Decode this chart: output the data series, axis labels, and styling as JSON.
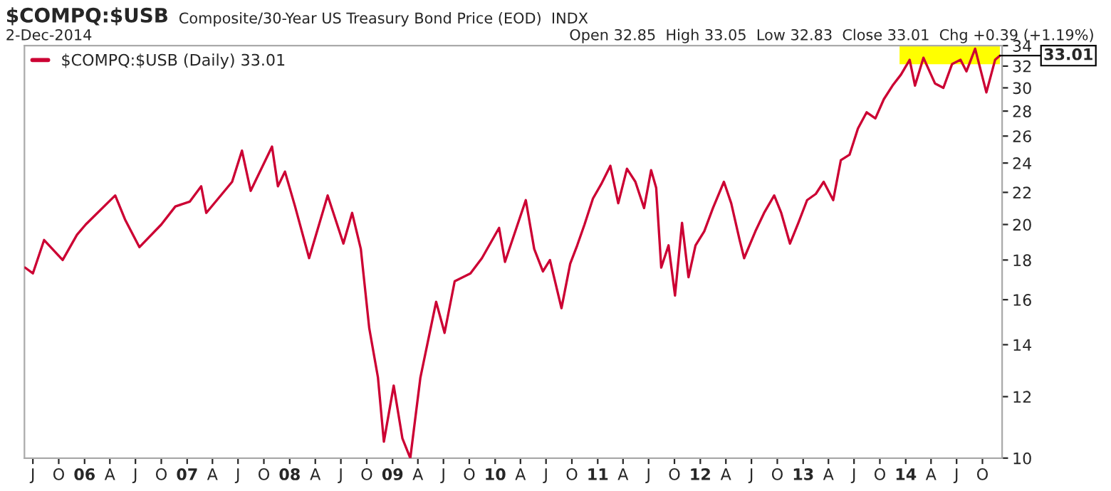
{
  "chart_data": {
    "type": "line",
    "title": "$COMPQ:$USB",
    "subtitle": "Composite/30-Year US Treasury Bond Price (EOD)  INDX",
    "annotations": [
      "2-Dec-2014",
      "Open 32.85  High 33.05  Low 32.83  Close 33.01  Chg +0.39 (+1.19%)",
      {
        "text": "33.01",
        "x": "2014-12-02",
        "y": 33.01
      }
    ],
    "x": [
      "2005-06-03",
      "2005-07-01",
      "2005-08-10",
      "2005-10-15",
      "2005-12-05",
      "2006-01-05",
      "2006-04-20",
      "2006-05-25",
      "2006-07-15",
      "2006-10-01",
      "2006-11-20",
      "2007-01-10",
      "2007-02-20",
      "2007-03-10",
      "2007-06-10",
      "2007-07-15",
      "2007-08-15",
      "2007-10-30",
      "2007-11-20",
      "2007-12-15",
      "2008-01-20",
      "2008-03-10",
      "2008-05-15",
      "2008-07-10",
      "2008-08-10",
      "2008-09-10",
      "2008-10-10",
      "2008-11-10",
      "2008-12-01",
      "2009-01-05",
      "2009-02-05",
      "2009-03-05",
      "2009-04-10",
      "2009-06-05",
      "2009-07-05",
      "2009-08-10",
      "2009-10-05",
      "2009-11-15",
      "2010-01-15",
      "2010-02-05",
      "2010-04-20",
      "2010-05-20",
      "2010-06-20",
      "2010-07-15",
      "2010-08-25",
      "2010-09-25",
      "2010-10-20",
      "2010-11-15",
      "2010-12-15",
      "2011-01-15",
      "2011-02-15",
      "2011-03-15",
      "2011-04-15",
      "2011-05-15",
      "2011-06-15",
      "2011-07-10",
      "2011-07-28",
      "2011-08-15",
      "2011-09-10",
      "2011-10-03",
      "2011-10-28",
      "2011-11-20",
      "2011-12-15",
      "2012-01-15",
      "2012-02-15",
      "2012-03-25",
      "2012-04-20",
      "2012-05-20",
      "2012-06-05",
      "2012-07-15",
      "2012-08-15",
      "2012-09-20",
      "2012-10-15",
      "2012-11-15",
      "2012-12-15",
      "2013-01-15",
      "2013-02-15",
      "2013-03-15",
      "2013-04-18",
      "2013-05-15",
      "2013-06-15",
      "2013-07-15",
      "2013-08-15",
      "2013-09-15",
      "2013-10-15",
      "2013-11-15",
      "2013-12-15",
      "2014-01-15",
      "2014-02-03",
      "2014-03-05",
      "2014-04-15",
      "2014-05-15",
      "2014-06-15",
      "2014-07-15",
      "2014-08-05",
      "2014-09-05",
      "2014-10-15",
      "2014-11-15",
      "2014-12-02"
    ],
    "series": [
      {
        "name": "$COMPQ:$USB (Daily) 33.01",
        "color": "#cc0033",
        "values": [
          17.6,
          17.3,
          19.1,
          18.0,
          19.4,
          20.0,
          21.8,
          20.3,
          18.7,
          20.0,
          21.1,
          21.4,
          22.4,
          20.7,
          22.7,
          24.9,
          22.1,
          25.2,
          22.4,
          23.4,
          21.1,
          18.1,
          21.8,
          18.9,
          20.7,
          18.6,
          14.7,
          12.7,
          10.5,
          12.4,
          10.6,
          10.0,
          12.7,
          15.9,
          14.5,
          16.9,
          17.3,
          18.1,
          19.8,
          17.9,
          21.5,
          18.6,
          17.4,
          18.0,
          15.6,
          17.8,
          18.8,
          20.0,
          21.6,
          22.6,
          23.8,
          21.3,
          23.6,
          22.7,
          21.0,
          23.5,
          22.3,
          17.6,
          18.8,
          16.2,
          20.1,
          17.1,
          18.8,
          19.6,
          21.0,
          22.7,
          21.3,
          19.1,
          18.1,
          19.6,
          20.7,
          21.8,
          20.7,
          18.9,
          20.1,
          21.5,
          21.9,
          22.7,
          21.5,
          24.2,
          24.6,
          26.6,
          27.9,
          27.4,
          29.0,
          30.2,
          31.2,
          32.6,
          30.2,
          32.8,
          30.4,
          30.0,
          32.2,
          32.6,
          31.5,
          33.7,
          29.6,
          32.6,
          33.01
        ]
      }
    ],
    "log": "y",
    "ylim": [
      10,
      34
    ],
    "yticks": [
      10,
      12,
      14,
      16,
      18,
      20,
      22,
      24,
      26,
      28,
      30,
      32,
      34
    ],
    "xlim": [
      "2005-06-01",
      "2014-12-10"
    ],
    "xticks": [
      {
        "value": "2005-07-01",
        "label": "J"
      },
      {
        "value": "2005-10-01",
        "label": "O"
      },
      {
        "value": "2006-01-01",
        "label": "06"
      },
      {
        "value": "2006-04-01",
        "label": "A"
      },
      {
        "value": "2006-07-01",
        "label": "J"
      },
      {
        "value": "2006-10-01",
        "label": "O"
      },
      {
        "value": "2007-01-01",
        "label": "07"
      },
      {
        "value": "2007-04-01",
        "label": "A"
      },
      {
        "value": "2007-07-01",
        "label": "J"
      },
      {
        "value": "2007-10-01",
        "label": "O"
      },
      {
        "value": "2008-01-01",
        "label": "08"
      },
      {
        "value": "2008-04-01",
        "label": "A"
      },
      {
        "value": "2008-07-01",
        "label": "J"
      },
      {
        "value": "2008-10-01",
        "label": "O"
      },
      {
        "value": "2009-01-01",
        "label": "09"
      },
      {
        "value": "2009-04-01",
        "label": "A"
      },
      {
        "value": "2009-07-01",
        "label": "J"
      },
      {
        "value": "2009-10-01",
        "label": "O"
      },
      {
        "value": "2010-01-01",
        "label": "10"
      },
      {
        "value": "2010-04-01",
        "label": "A"
      },
      {
        "value": "2010-07-01",
        "label": "J"
      },
      {
        "value": "2010-10-01",
        "label": "O"
      },
      {
        "value": "2011-01-01",
        "label": "11"
      },
      {
        "value": "2011-04-01",
        "label": "A"
      },
      {
        "value": "2011-07-01",
        "label": "J"
      },
      {
        "value": "2011-10-01",
        "label": "O"
      },
      {
        "value": "2012-01-01",
        "label": "12"
      },
      {
        "value": "2012-04-01",
        "label": "A"
      },
      {
        "value": "2012-07-01",
        "label": "J"
      },
      {
        "value": "2012-10-01",
        "label": "O"
      },
      {
        "value": "2013-01-01",
        "label": "13"
      },
      {
        "value": "2013-04-01",
        "label": "A"
      },
      {
        "value": "2013-07-01",
        "label": "J"
      },
      {
        "value": "2013-10-01",
        "label": "O"
      },
      {
        "value": "2014-01-01",
        "label": "14"
      },
      {
        "value": "2014-04-01",
        "label": "A"
      },
      {
        "value": "2014-07-01",
        "label": "J"
      },
      {
        "value": "2014-10-01",
        "label": "O"
      }
    ],
    "bands": [
      {
        "axis": "x",
        "from": "2013-12-10",
        "to": "2014-12-02",
        "color": "#ffff00"
      }
    ],
    "grid": false,
    "legend": "top left",
    "marker": "none",
    "line_style": "solid"
  }
}
